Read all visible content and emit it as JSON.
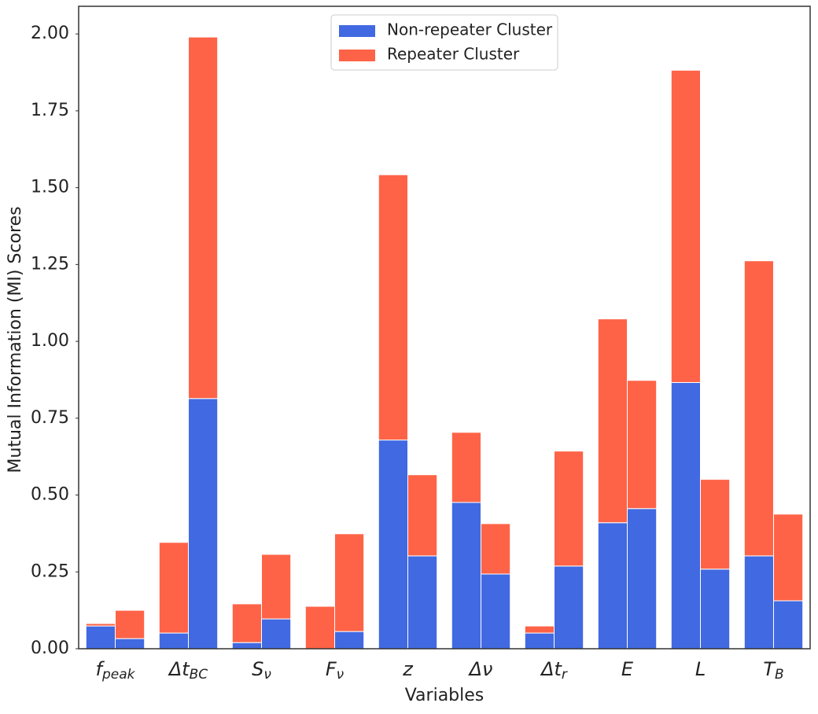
{
  "chart_data": {
    "type": "grouped-stacked-bar",
    "x_label": "Variables",
    "y_label": "Mutual Information (MI) Scores",
    "categories": [
      {
        "base": "f",
        "sub": "peak"
      },
      {
        "base": "Δt",
        "sub": "BC"
      },
      {
        "base": "S",
        "sub": "ν"
      },
      {
        "base": "F",
        "sub": "ν"
      },
      {
        "base": "z",
        "sub": ""
      },
      {
        "base": "Δν",
        "sub": ""
      },
      {
        "base": "Δt",
        "sub": "r"
      },
      {
        "base": "E",
        "sub": ""
      },
      {
        "base": "L",
        "sub": ""
      },
      {
        "base": "T",
        "sub": "B"
      }
    ],
    "series": [
      {
        "name": "Non-repeater Cluster",
        "color": "#4169e1",
        "values": [
          [
            0.074,
            0.033
          ],
          [
            0.051,
            0.814
          ],
          [
            0.02,
            0.097
          ],
          [
            0,
            0.056
          ],
          [
            0.679,
            0.302
          ],
          [
            0.476,
            0.243
          ],
          [
            0.051,
            0.269
          ],
          [
            0.41,
            0.456
          ],
          [
            0.866,
            0.259
          ],
          [
            0.302,
            0.156
          ]
        ]
      },
      {
        "name": "Repeater Cluster",
        "color": "#ff6347",
        "values": [
          [
            0.008,
            0.092
          ],
          [
            0.295,
            1.176
          ],
          [
            0.126,
            0.21
          ],
          [
            0.138,
            0.318
          ],
          [
            0.863,
            0.264
          ],
          [
            0.228,
            0.164
          ],
          [
            0.023,
            0.374
          ],
          [
            0.663,
            0.417
          ],
          [
            1.016,
            0.292
          ],
          [
            0.96,
            0.282
          ]
        ]
      }
    ],
    "ylim": [
      0,
      2.09
    ],
    "yticks": [
      {
        "value": 0,
        "label": "0.00"
      },
      {
        "value": 0.25,
        "label": "0.25"
      },
      {
        "value": 0.5,
        "label": "0.50"
      },
      {
        "value": 0.75,
        "label": "0.75"
      },
      {
        "value": 1,
        "label": "1.00"
      },
      {
        "value": 1.25,
        "label": "1.25"
      },
      {
        "value": 1.5,
        "label": "1.50"
      },
      {
        "value": 1.75,
        "label": "1.75"
      },
      {
        "value": 2,
        "label": "2.00"
      }
    ],
    "legend": "upper center"
  }
}
